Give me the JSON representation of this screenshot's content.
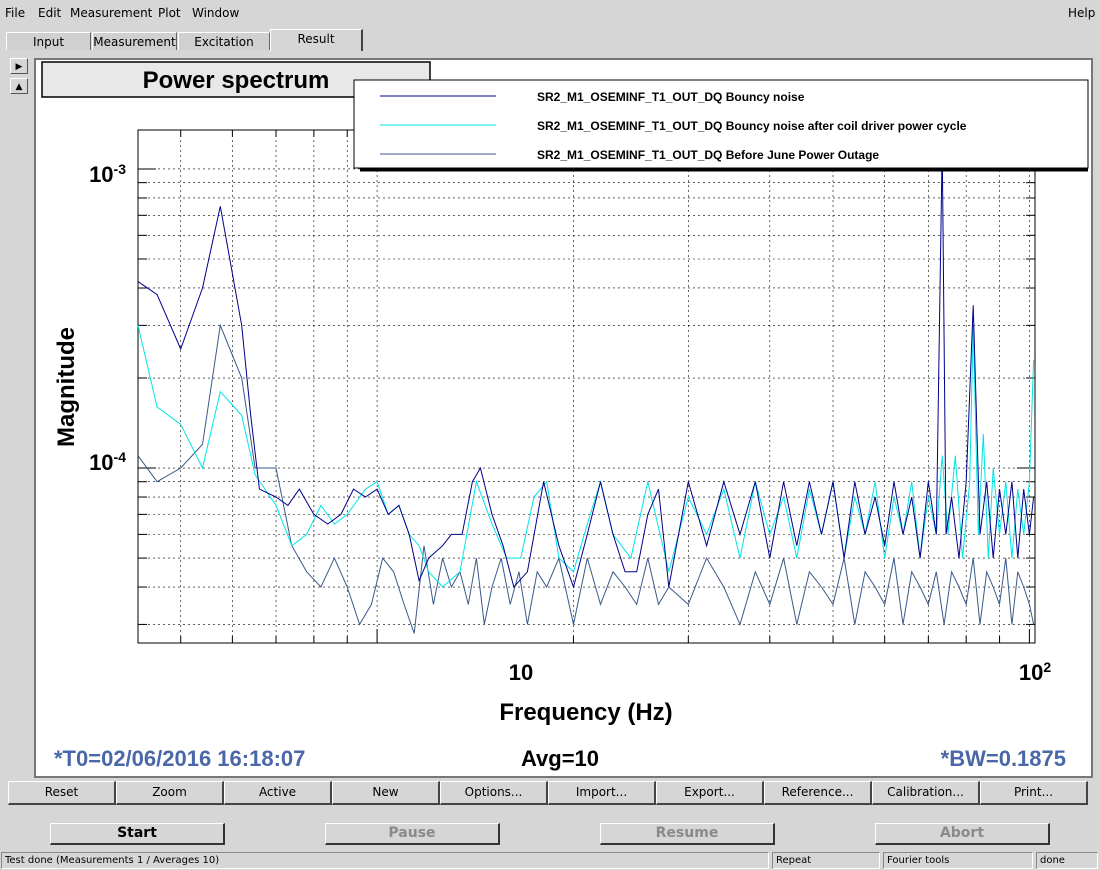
{
  "menubar": {
    "items": [
      "File",
      "Edit",
      "Measurement",
      "Plot",
      "Window"
    ],
    "help": "Help"
  },
  "tabs": [
    "Input",
    "Measurement",
    "Excitation",
    "Result"
  ],
  "active_tab": "Result",
  "plot": {
    "footer": {
      "t0": "*T0=02/06/2016 16:18:07",
      "avg": "Avg=10",
      "bw": "*BW=0.1875"
    }
  },
  "buttons": [
    "Reset",
    "Zoom",
    "Active",
    "New",
    "Options...",
    "Import...",
    "Export...",
    "Reference...",
    "Calibration...",
    "Print..."
  ],
  "controls": {
    "start": "Start",
    "pause": "Pause",
    "resume": "Resume",
    "abort": "Abort"
  },
  "status": {
    "message": "Test done (Measurements 1 / Averages 10)",
    "mode": "Repeat",
    "tool": "Fourier tools",
    "state": "done"
  },
  "colors": {
    "bouncy": "#00008b",
    "after_cycle": "#00e5e5",
    "before_outage": "#3a5a8a",
    "footer_text": "#4a67a8"
  },
  "chart_data": {
    "type": "line",
    "title": "Power spectrum",
    "xlabel": "Frequency (Hz)",
    "ylabel": "Magnitude",
    "xscale": "log",
    "yscale": "log",
    "xlim": [
      4.3,
      102
    ],
    "ylim": [
      2.6e-05,
      0.00135
    ],
    "x_ticks": [
      {
        "value": 10,
        "label": "10"
      },
      {
        "value": 100,
        "label": "10^2"
      }
    ],
    "y_ticks": [
      {
        "value": 0.0001,
        "label": "10^-4"
      },
      {
        "value": 0.001,
        "label": "10^-3"
      }
    ],
    "grid": true,
    "legend_position": "top-right",
    "series": [
      {
        "name": "SR2_M1_OSEMINF_T1_OUT_DQ Bouncy noise",
        "color": "#00008b",
        "points": [
          [
            4.3,
            0.00042
          ],
          [
            4.6,
            0.00038
          ],
          [
            5.0,
            0.00025
          ],
          [
            5.4,
            0.0004
          ],
          [
            5.75,
            0.00075
          ],
          [
            6.2,
            0.0003
          ],
          [
            6.4,
            0.00015
          ],
          [
            6.6,
            8.5e-05
          ],
          [
            7.0,
            8e-05
          ],
          [
            7.3,
            7.5e-05
          ],
          [
            7.6,
            8.5e-05
          ],
          [
            8.0,
            7e-05
          ],
          [
            8.4,
            6.5e-05
          ],
          [
            8.8,
            7e-05
          ],
          [
            9.2,
            8.5e-05
          ],
          [
            9.6,
            8e-05
          ],
          [
            10.0,
            8.5e-05
          ],
          [
            10.4,
            7e-05
          ],
          [
            10.8,
            7.5e-05
          ],
          [
            11.2,
            6e-05
          ],
          [
            11.6,
            4.2e-05
          ],
          [
            12.0,
            5e-05
          ],
          [
            12.6,
            5.5e-05
          ],
          [
            13.0,
            6e-05
          ],
          [
            13.5,
            6e-05
          ],
          [
            14.0,
            9e-05
          ],
          [
            14.4,
            0.0001
          ],
          [
            15.0,
            7e-05
          ],
          [
            15.6,
            5.5e-05
          ],
          [
            16.2,
            4e-05
          ],
          [
            17.0,
            4.5e-05
          ],
          [
            18.0,
            9e-05
          ],
          [
            19.0,
            5.5e-05
          ],
          [
            20.0,
            4e-05
          ],
          [
            21.0,
            6e-05
          ],
          [
            22.0,
            9e-05
          ],
          [
            23.0,
            6e-05
          ],
          [
            24.0,
            4.5e-05
          ],
          [
            25.0,
            4.5e-05
          ],
          [
            26.0,
            7e-05
          ],
          [
            27.0,
            8.5e-05
          ],
          [
            28.0,
            4e-05
          ],
          [
            30.0,
            9e-05
          ],
          [
            32.0,
            5.5e-05
          ],
          [
            34.0,
            9e-05
          ],
          [
            36.0,
            6e-05
          ],
          [
            38.0,
            9e-05
          ],
          [
            40.0,
            5e-05
          ],
          [
            42.0,
            9e-05
          ],
          [
            44.0,
            5.5e-05
          ],
          [
            46.0,
            9e-05
          ],
          [
            48.0,
            6e-05
          ],
          [
            50.0,
            9e-05
          ],
          [
            52.0,
            5e-05
          ],
          [
            54.0,
            9e-05
          ],
          [
            56.0,
            6e-05
          ],
          [
            58.0,
            8e-05
          ],
          [
            60.0,
            5.5e-05
          ],
          [
            62.0,
            9e-05
          ],
          [
            64.0,
            6e-05
          ],
          [
            66.0,
            8e-05
          ],
          [
            68.0,
            5e-05
          ],
          [
            70.0,
            9e-05
          ],
          [
            72.0,
            6e-05
          ],
          [
            73.5,
            0.0012
          ],
          [
            74.5,
            6e-05
          ],
          [
            76.0,
            8e-05
          ],
          [
            78.0,
            5e-05
          ],
          [
            80.0,
            9e-05
          ],
          [
            82.0,
            0.00035
          ],
          [
            84.0,
            6e-05
          ],
          [
            86.0,
            9e-05
          ],
          [
            88.0,
            5e-05
          ],
          [
            90.0,
            8.5e-05
          ],
          [
            92.0,
            6e-05
          ],
          [
            94.0,
            9e-05
          ],
          [
            96.0,
            5e-05
          ],
          [
            98.0,
            8.5e-05
          ],
          [
            100.0,
            6e-05
          ],
          [
            101.5,
            8e-05
          ]
        ]
      },
      {
        "name": "SR2_M1_OSEMINF_T1_OUT_DQ Bouncy noise after coil driver power cycle",
        "color": "#00e5e5",
        "points": [
          [
            4.3,
            0.0003
          ],
          [
            4.6,
            0.00016
          ],
          [
            5.0,
            0.00014
          ],
          [
            5.4,
            0.0001
          ],
          [
            5.75,
            0.00018
          ],
          [
            6.2,
            0.00015
          ],
          [
            6.5,
            9.5e-05
          ],
          [
            7.0,
            7.5e-05
          ],
          [
            7.4,
            5.5e-05
          ],
          [
            7.8,
            6e-05
          ],
          [
            8.2,
            7.5e-05
          ],
          [
            8.6,
            6.5e-05
          ],
          [
            9.0,
            7e-05
          ],
          [
            9.6,
            8.5e-05
          ],
          [
            10.0,
            9e-05
          ],
          [
            10.4,
            7e-05
          ],
          [
            10.8,
            7.5e-05
          ],
          [
            11.2,
            6e-05
          ],
          [
            11.6,
            5.5e-05
          ],
          [
            12.0,
            4.5e-05
          ],
          [
            12.6,
            4e-05
          ],
          [
            13.4,
            4.5e-05
          ],
          [
            14.2,
            9e-05
          ],
          [
            15.0,
            6.5e-05
          ],
          [
            15.8,
            5e-05
          ],
          [
            16.6,
            5e-05
          ],
          [
            17.4,
            8e-05
          ],
          [
            18.2,
            9e-05
          ],
          [
            19.0,
            5e-05
          ],
          [
            20.0,
            4.5e-05
          ],
          [
            21.0,
            6.5e-05
          ],
          [
            22.0,
            9e-05
          ],
          [
            23.0,
            6e-05
          ],
          [
            24.5,
            5e-05
          ],
          [
            26.0,
            9e-05
          ],
          [
            28.0,
            4.5e-05
          ],
          [
            30.0,
            8e-05
          ],
          [
            32.0,
            6e-05
          ],
          [
            34.0,
            8.5e-05
          ],
          [
            36.0,
            5e-05
          ],
          [
            38.0,
            9e-05
          ],
          [
            40.0,
            6e-05
          ],
          [
            42.0,
            8e-05
          ],
          [
            44.0,
            5e-05
          ],
          [
            46.0,
            8.5e-05
          ],
          [
            48.0,
            6e-05
          ],
          [
            50.0,
            9e-05
          ],
          [
            52.0,
            5e-05
          ],
          [
            54.0,
            8e-05
          ],
          [
            56.0,
            6e-05
          ],
          [
            58.0,
            9e-05
          ],
          [
            60.0,
            5e-05
          ],
          [
            62.0,
            8e-05
          ],
          [
            64.0,
            6e-05
          ],
          [
            66.0,
            9e-05
          ],
          [
            68.0,
            5e-05
          ],
          [
            70.0,
            8e-05
          ],
          [
            72.0,
            6e-05
          ],
          [
            73.5,
            0.00011
          ],
          [
            75.0,
            6e-05
          ],
          [
            77.0,
            0.00011
          ],
          [
            79.0,
            5e-05
          ],
          [
            81.0,
            9e-05
          ],
          [
            82.0,
            0.0003
          ],
          [
            83.5,
            6e-05
          ],
          [
            85.0,
            0.00013
          ],
          [
            86.5,
            5e-05
          ],
          [
            88.0,
            0.0001
          ],
          [
            90.0,
            6e-05
          ],
          [
            92.0,
            9e-05
          ],
          [
            94.0,
            5e-05
          ],
          [
            96.0,
            8.5e-05
          ],
          [
            98.0,
            6e-05
          ],
          [
            100.0,
            9e-05
          ],
          [
            101.5,
            0.00023
          ]
        ]
      },
      {
        "name": "SR2_M1_OSEMINF_T1_OUT_DQ Before June Power Outage",
        "color": "#3a5a8a",
        "points": [
          [
            4.3,
            0.00011
          ],
          [
            4.6,
            9e-05
          ],
          [
            5.0,
            0.0001
          ],
          [
            5.4,
            0.00012
          ],
          [
            5.75,
            0.0003
          ],
          [
            6.2,
            0.0002
          ],
          [
            6.5,
            0.0001
          ],
          [
            7.0,
            0.0001
          ],
          [
            7.4,
            5.5e-05
          ],
          [
            7.8,
            4.5e-05
          ],
          [
            8.2,
            4e-05
          ],
          [
            8.6,
            5e-05
          ],
          [
            9.0,
            4e-05
          ],
          [
            9.4,
            3e-05
          ],
          [
            9.8,
            3.5e-05
          ],
          [
            10.2,
            5e-05
          ],
          [
            10.6,
            4.5e-05
          ],
          [
            11.0,
            3.5e-05
          ],
          [
            11.4,
            2.8e-05
          ],
          [
            11.8,
            5.5e-05
          ],
          [
            12.2,
            3.5e-05
          ],
          [
            12.6,
            5e-05
          ],
          [
            13.0,
            4e-05
          ],
          [
            13.4,
            4.5e-05
          ],
          [
            13.8,
            3.5e-05
          ],
          [
            14.2,
            5e-05
          ],
          [
            14.6,
            3e-05
          ],
          [
            15.0,
            4e-05
          ],
          [
            15.5,
            5e-05
          ],
          [
            16.0,
            3.5e-05
          ],
          [
            16.5,
            4.5e-05
          ],
          [
            17.0,
            3e-05
          ],
          [
            17.6,
            4.5e-05
          ],
          [
            18.2,
            4e-05
          ],
          [
            19.0,
            5e-05
          ],
          [
            20.0,
            3e-05
          ],
          [
            21.0,
            5e-05
          ],
          [
            22.0,
            3.5e-05
          ],
          [
            23.0,
            4.5e-05
          ],
          [
            24.0,
            4e-05
          ],
          [
            25.0,
            3.5e-05
          ],
          [
            26.0,
            5e-05
          ],
          [
            27.0,
            3.5e-05
          ],
          [
            28.0,
            4e-05
          ],
          [
            30.0,
            3.5e-05
          ],
          [
            32.0,
            5e-05
          ],
          [
            34.0,
            4e-05
          ],
          [
            36.0,
            3e-05
          ],
          [
            38.0,
            4.5e-05
          ],
          [
            40.0,
            3.5e-05
          ],
          [
            42.0,
            5e-05
          ],
          [
            44.0,
            3e-05
          ],
          [
            46.0,
            4.5e-05
          ],
          [
            48.0,
            4e-05
          ],
          [
            50.0,
            3.5e-05
          ],
          [
            52.0,
            5e-05
          ],
          [
            54.0,
            3e-05
          ],
          [
            56.0,
            4.5e-05
          ],
          [
            58.0,
            4e-05
          ],
          [
            60.0,
            3.5e-05
          ],
          [
            62.0,
            5e-05
          ],
          [
            64.0,
            3e-05
          ],
          [
            66.0,
            4.5e-05
          ],
          [
            68.0,
            4e-05
          ],
          [
            70.0,
            3.5e-05
          ],
          [
            72.0,
            4.5e-05
          ],
          [
            74.0,
            3e-05
          ],
          [
            76.0,
            4.5e-05
          ],
          [
            78.0,
            4e-05
          ],
          [
            80.0,
            3.5e-05
          ],
          [
            82.0,
            5e-05
          ],
          [
            84.0,
            3e-05
          ],
          [
            86.0,
            4.5e-05
          ],
          [
            88.0,
            4e-05
          ],
          [
            90.0,
            3.5e-05
          ],
          [
            92.0,
            5e-05
          ],
          [
            94.0,
            3e-05
          ],
          [
            96.0,
            4.5e-05
          ],
          [
            98.0,
            4e-05
          ],
          [
            100.0,
            3.5e-05
          ],
          [
            101.5,
            3e-05
          ]
        ]
      }
    ]
  }
}
